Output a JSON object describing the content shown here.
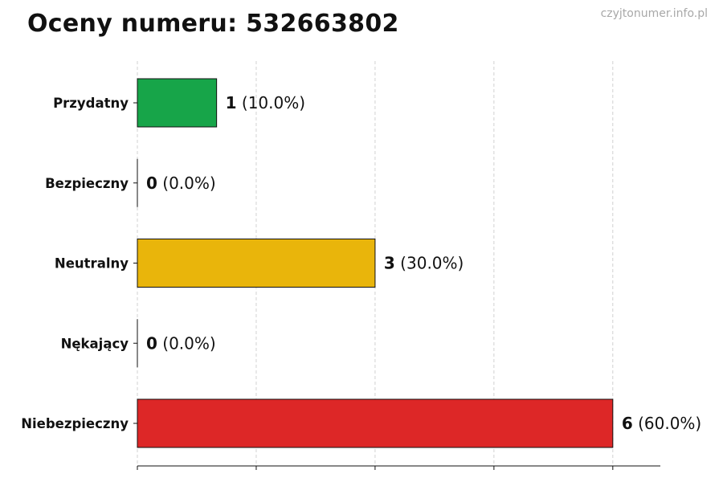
{
  "title": "Oceny numeru: 532663802",
  "watermark": "czyjtonumer.info.pl",
  "chart_data": {
    "type": "bar",
    "orientation": "horizontal",
    "categories": [
      "Przydatny",
      "Bezpieczny",
      "Neutralny",
      "Nękający",
      "Niebezpieczny"
    ],
    "values": [
      1,
      0,
      3,
      0,
      6
    ],
    "value_labels": [
      "1",
      "0",
      "3",
      "0",
      "6"
    ],
    "percent_labels": [
      "(10.0%)",
      "(0.0%)",
      "(30.0%)",
      "(0.0%)",
      "(60.0%)"
    ],
    "colors": [
      "#17a549",
      "#17a549",
      "#e9b50b",
      "#dd2727",
      "#dd2727"
    ],
    "bar_edge_color": "#111111",
    "xlim": [
      0,
      6.6
    ],
    "grid": true,
    "grid_axis": "x",
    "x_tick_labels_shown": false
  }
}
